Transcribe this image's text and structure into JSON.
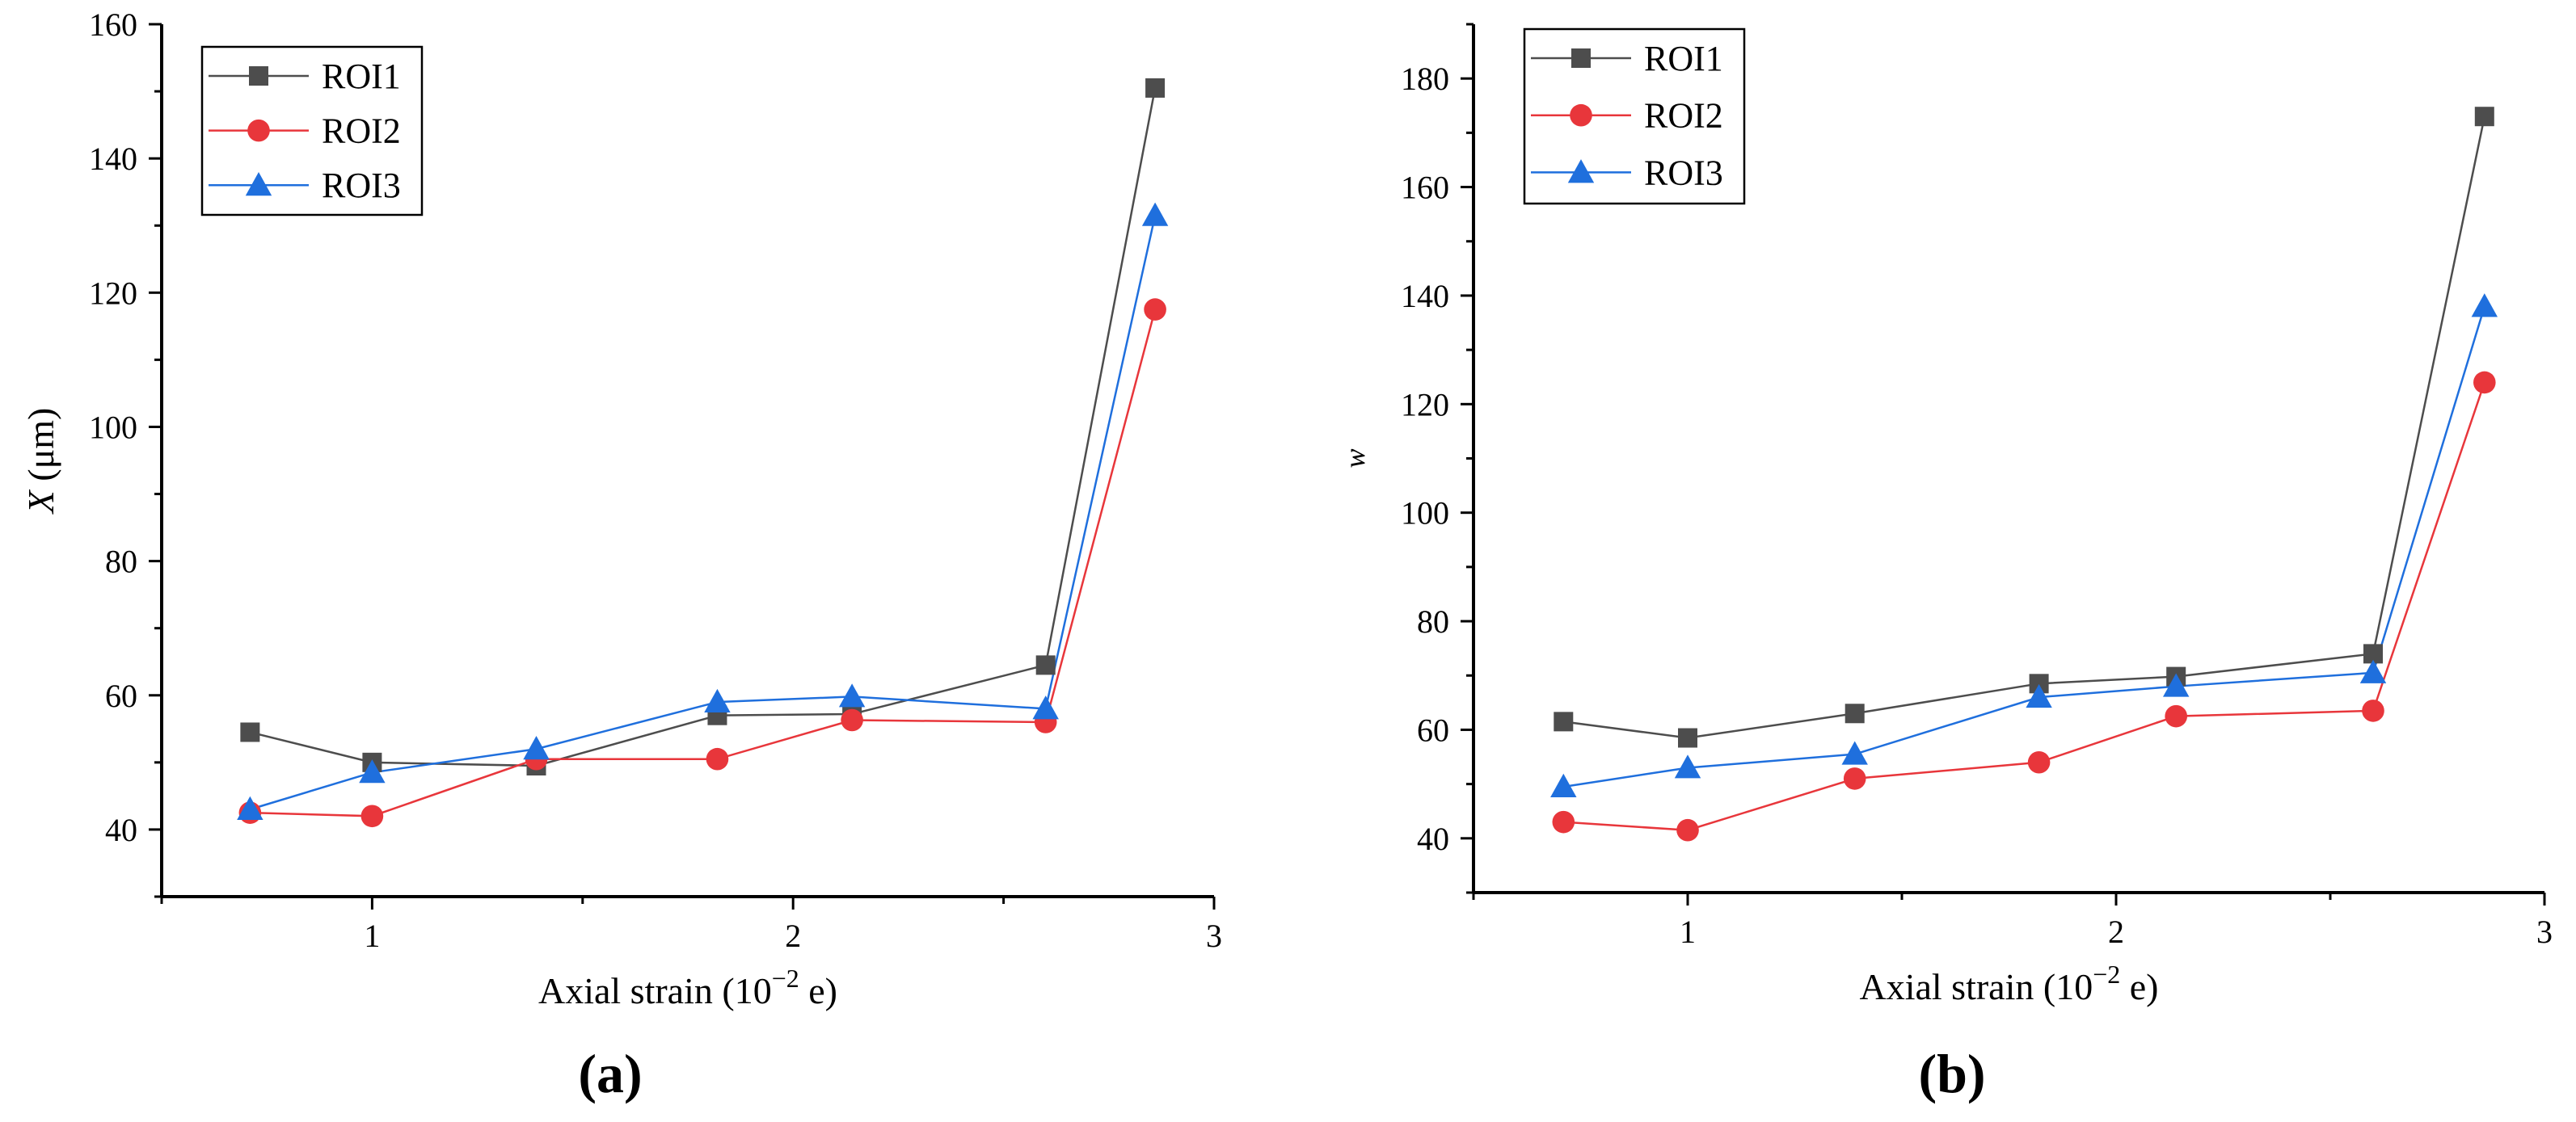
{
  "chart_data": [
    {
      "type": "line",
      "panel_label": "(a)",
      "xlabel": "Axial strain (10",
      "xlabel_sup": "−2",
      "xlabel_tail": " e)",
      "ylabel_var": "X",
      "ylabel_unit": " (μm)",
      "xlim": [
        0.5,
        3.0
      ],
      "ylim": [
        30,
        160
      ],
      "xticks": [
        1,
        2,
        3
      ],
      "yticks": [
        40,
        60,
        80,
        100,
        120,
        140,
        160
      ],
      "x": [
        0.71,
        1.0,
        1.39,
        1.82,
        2.14,
        2.6,
        2.86
      ],
      "series": [
        {
          "name": "ROI1",
          "color": "#4d4d4d",
          "marker": "square",
          "values": [
            54.5,
            50.0,
            49.5,
            57.0,
            57.2,
            64.5,
            150.5
          ]
        },
        {
          "name": "ROI2",
          "color": "#e8363b",
          "marker": "circle",
          "values": [
            42.5,
            42.0,
            50.5,
            50.5,
            56.3,
            56.0,
            117.5
          ]
        },
        {
          "name": "ROI3",
          "color": "#1f6fdd",
          "marker": "triangle",
          "values": [
            43.0,
            48.5,
            52.0,
            59.0,
            59.8,
            58.0,
            131.5
          ]
        }
      ],
      "legend_position": "top-left"
    },
    {
      "type": "line",
      "panel_label": "(b)",
      "xlabel": "Axial strain (10",
      "xlabel_sup": "−2",
      "xlabel_tail": " e)",
      "ylabel_var": "w",
      "ylabel_unit": "",
      "xlim": [
        0.5,
        3.0
      ],
      "ylim": [
        30,
        190
      ],
      "xticks": [
        1,
        2,
        3
      ],
      "yticks": [
        40,
        60,
        80,
        100,
        120,
        140,
        160,
        180
      ],
      "x": [
        0.71,
        1.0,
        1.39,
        1.82,
        2.14,
        2.6,
        2.86
      ],
      "series": [
        {
          "name": "ROI1",
          "color": "#4d4d4d",
          "marker": "square",
          "values": [
            61.5,
            58.5,
            63.0,
            68.5,
            69.8,
            74.0,
            173.0
          ]
        },
        {
          "name": "ROI2",
          "color": "#e8363b",
          "marker": "circle",
          "values": [
            43.0,
            41.5,
            51.0,
            54.0,
            62.5,
            63.5,
            124.0
          ]
        },
        {
          "name": "ROI3",
          "color": "#1f6fdd",
          "marker": "triangle",
          "values": [
            49.5,
            53.0,
            55.5,
            66.0,
            68.0,
            70.5,
            138.0
          ]
        }
      ],
      "legend_position": "top-left"
    }
  ]
}
